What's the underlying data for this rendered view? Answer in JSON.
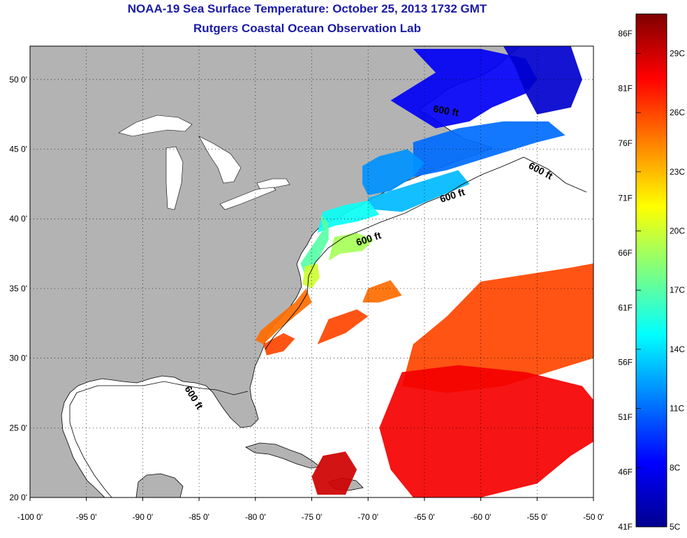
{
  "title": "NOAA-19 Sea Surface Temperature:  October 25, 2013 1732 GMT",
  "subtitle": "Rutgers Coastal Ocean Observation Lab",
  "map": {
    "lon_range": [
      -100,
      -50
    ],
    "lat_range": [
      20,
      52.4
    ],
    "lon_ticks": [
      {
        "v": -100,
        "label": "-100 0'"
      },
      {
        "v": -95,
        "label": "-95 0'"
      },
      {
        "v": -90,
        "label": "-90 0'"
      },
      {
        "v": -85,
        "label": "-85 0'"
      },
      {
        "v": -80,
        "label": "-80 0'"
      },
      {
        "v": -75,
        "label": "-75 0'"
      },
      {
        "v": -70,
        "label": "-70 0'"
      },
      {
        "v": -65,
        "label": "-65 0'"
      },
      {
        "v": -60,
        "label": "-60 0'"
      },
      {
        "v": -55,
        "label": "-55 0'"
      },
      {
        "v": -50,
        "label": "-50 0'"
      }
    ],
    "lat_ticks": [
      {
        "v": 20,
        "label": "20 0'"
      },
      {
        "v": 25,
        "label": "25 0'"
      },
      {
        "v": 30,
        "label": "30 0'"
      },
      {
        "v": 35,
        "label": "35 0'"
      },
      {
        "v": 40,
        "label": "40 0'"
      },
      {
        "v": 45,
        "label": "45 0'"
      },
      {
        "v": 50,
        "label": "50 0'"
      }
    ],
    "contour_label": "600 ft",
    "land_color": "#b3b3b3",
    "ocean_color": "#ffffff"
  },
  "colorbar": {
    "range_c": [
      5,
      31
    ],
    "fahrenheit": [
      {
        "v": 41,
        "label": "41F"
      },
      {
        "v": 46,
        "label": "46F"
      },
      {
        "v": 51,
        "label": "51F"
      },
      {
        "v": 56,
        "label": "56F"
      },
      {
        "v": 61,
        "label": "61F"
      },
      {
        "v": 66,
        "label": "66F"
      },
      {
        "v": 71,
        "label": "71F"
      },
      {
        "v": 76,
        "label": "76F"
      },
      {
        "v": 81,
        "label": "81F"
      },
      {
        "v": 86,
        "label": "86F"
      }
    ],
    "celsius": [
      {
        "v": 5,
        "label": "5C"
      },
      {
        "v": 8,
        "label": "8C"
      },
      {
        "v": 11,
        "label": "11C"
      },
      {
        "v": 14,
        "label": "14C"
      },
      {
        "v": 17,
        "label": "17C"
      },
      {
        "v": 20,
        "label": "20C"
      },
      {
        "v": 23,
        "label": "23C"
      },
      {
        "v": 26,
        "label": "26C"
      },
      {
        "v": 29,
        "label": "29C"
      }
    ]
  },
  "sst_regions": [
    {
      "name": "gulf-of-st-lawrence",
      "temp_c": 8,
      "pts": [
        [
          -66,
          52.2
        ],
        [
          -60,
          52.2
        ],
        [
          -56,
          51.5
        ],
        [
          -55,
          50
        ],
        [
          -56,
          49
        ],
        [
          -59,
          48
        ],
        [
          -61,
          47
        ],
        [
          -64,
          46.5
        ],
        [
          -66,
          47.5
        ],
        [
          -68,
          48.5
        ],
        [
          -66,
          49.5
        ],
        [
          -64,
          50.5
        ]
      ]
    },
    {
      "name": "labrador-coast",
      "temp_c": 7,
      "pts": [
        [
          -58,
          52.4
        ],
        [
          -52,
          52.4
        ],
        [
          -51,
          50
        ],
        [
          -52,
          48
        ],
        [
          -55,
          47.5
        ],
        [
          -56,
          49
        ],
        [
          -57,
          51
        ]
      ]
    },
    {
      "name": "scotian-shelf",
      "temp_c": 11,
      "pts": [
        [
          -66,
          45.5
        ],
        [
          -62,
          46.5
        ],
        [
          -58,
          47
        ],
        [
          -54,
          47
        ],
        [
          -52.5,
          46
        ],
        [
          -55,
          45.5
        ],
        [
          -59,
          44.5
        ],
        [
          -63,
          43.5
        ],
        [
          -66,
          43
        ]
      ]
    },
    {
      "name": "gulf-of-maine",
      "temp_c": 12,
      "pts": [
        [
          -70.5,
          43.8
        ],
        [
          -69,
          44.5
        ],
        [
          -66.5,
          45
        ],
        [
          -65,
          44
        ],
        [
          -66,
          43
        ],
        [
          -68,
          42
        ],
        [
          -70,
          41.7
        ],
        [
          -70.5,
          42.5
        ]
      ]
    },
    {
      "name": "georges-bank",
      "temp_c": 13,
      "pts": [
        [
          -70,
          41.5
        ],
        [
          -66,
          42.5
        ],
        [
          -64,
          43
        ],
        [
          -62,
          43.5
        ],
        [
          -61,
          42.5
        ],
        [
          -64,
          41.5
        ],
        [
          -67,
          40.5
        ],
        [
          -70,
          40.7
        ]
      ]
    },
    {
      "name": "mid-atlantic-shelf",
      "temp_c": 15,
      "pts": [
        [
          -74,
          40.5
        ],
        [
          -72,
          41
        ],
        [
          -70,
          41.3
        ],
        [
          -69,
          40.3
        ],
        [
          -71,
          39.8
        ],
        [
          -73,
          39.5
        ],
        [
          -74.5,
          39
        ]
      ]
    },
    {
      "name": "nj-delmarva",
      "temp_c": 17,
      "pts": [
        [
          -74.2,
          40.3
        ],
        [
          -74,
          39.2
        ],
        [
          -75,
          38
        ],
        [
          -76,
          36.8
        ],
        [
          -75.6,
          36
        ],
        [
          -74.5,
          37
        ],
        [
          -73.5,
          38.5
        ],
        [
          -73.5,
          39.7
        ]
      ]
    },
    {
      "name": "slope-water",
      "temp_c": 19,
      "pts": [
        [
          -73,
          38.7
        ],
        [
          -71,
          39
        ],
        [
          -69.5,
          38.5
        ],
        [
          -70.5,
          37.7
        ],
        [
          -72.5,
          37.5
        ],
        [
          -73.5,
          37
        ]
      ]
    },
    {
      "name": "hatteras",
      "temp_c": 20,
      "pts": [
        [
          -75.6,
          36.6
        ],
        [
          -74.5,
          36.8
        ],
        [
          -74.3,
          35.8
        ],
        [
          -75,
          35
        ],
        [
          -75.8,
          35.3
        ]
      ]
    },
    {
      "name": "south-atlantic-bight",
      "temp_c": 25,
      "pts": [
        [
          -75.5,
          35
        ],
        [
          -76.5,
          34
        ],
        [
          -78,
          33
        ],
        [
          -79.5,
          32
        ],
        [
          -80,
          31.3
        ],
        [
          -79.3,
          31
        ],
        [
          -78,
          32
        ],
        [
          -76.5,
          33
        ],
        [
          -75,
          34
        ]
      ]
    },
    {
      "name": "gulf-stream-patch-1",
      "temp_c": 26,
      "pts": [
        [
          -79.3,
          31
        ],
        [
          -77.5,
          31.8
        ],
        [
          -76.5,
          31.4
        ],
        [
          -77.5,
          30.5
        ],
        [
          -79,
          30.2
        ]
      ]
    },
    {
      "name": "gulf-stream-patch-2",
      "temp_c": 26,
      "pts": [
        [
          -73.5,
          32.8
        ],
        [
          -71,
          33.5
        ],
        [
          -70,
          33
        ],
        [
          -72,
          31.8
        ],
        [
          -74.5,
          31
        ]
      ]
    },
    {
      "name": "gulf-stream-patch-3",
      "temp_c": 25,
      "pts": [
        [
          -70,
          35
        ],
        [
          -68,
          35.6
        ],
        [
          -67,
          34.5
        ],
        [
          -69,
          34
        ],
        [
          -70.5,
          34
        ]
      ]
    },
    {
      "name": "sargasso-east",
      "temp_c": 26,
      "pts": [
        [
          -50,
          36.8
        ],
        [
          -52,
          36.5
        ],
        [
          -56,
          36
        ],
        [
          -60,
          35.5
        ],
        [
          -63,
          33
        ],
        [
          -66,
          31
        ],
        [
          -67,
          28
        ],
        [
          -63,
          27.5
        ],
        [
          -58,
          28
        ],
        [
          -54,
          29
        ],
        [
          -50,
          30
        ]
      ]
    },
    {
      "name": "sargasso-south",
      "temp_c": 28,
      "pts": [
        [
          -67,
          29
        ],
        [
          -62,
          29.5
        ],
        [
          -56,
          29
        ],
        [
          -51,
          28
        ],
        [
          -50,
          27
        ],
        [
          -50,
          24
        ],
        [
          -52,
          23
        ],
        [
          -55,
          21
        ],
        [
          -60,
          20
        ],
        [
          -66,
          20
        ],
        [
          -68,
          22
        ],
        [
          -69,
          25
        ],
        [
          -68,
          27
        ]
      ]
    },
    {
      "name": "caribbean-patch",
      "temp_c": 29,
      "pts": [
        [
          -74,
          23
        ],
        [
          -72,
          23.3
        ],
        [
          -71,
          22
        ],
        [
          -72,
          20.2
        ],
        [
          -74.5,
          20.2
        ],
        [
          -75,
          21.5
        ]
      ]
    }
  ]
}
